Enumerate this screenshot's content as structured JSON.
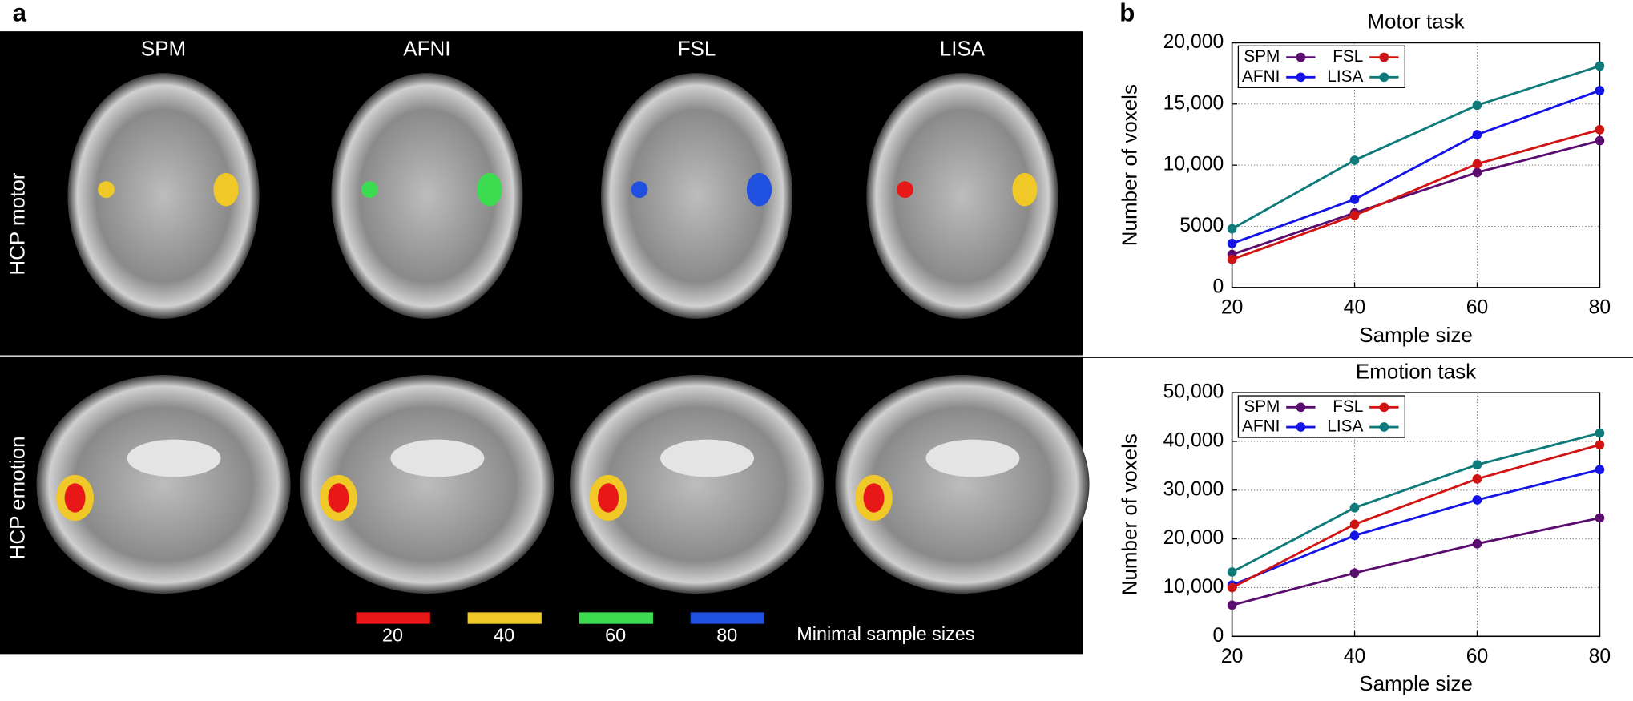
{
  "panel_labels": [
    "a",
    "b"
  ],
  "panel_a": {
    "columns": [
      "SPM",
      "AFNI",
      "FSL",
      "LISA"
    ],
    "rows": [
      "HCP motor",
      "HCP emotion"
    ],
    "scale": {
      "labels": [
        "20",
        "40",
        "60",
        "80"
      ],
      "title": "Minimal sample sizes"
    }
  },
  "chart_data": [
    {
      "type": "line",
      "title": "Motor task",
      "x_label": "Sample size",
      "y_label": "Number of voxels",
      "x": [
        20,
        40,
        60,
        80
      ],
      "xlim": [
        20,
        80
      ],
      "xticks": [
        20,
        40,
        60,
        80
      ],
      "ylim": [
        0,
        20000
      ],
      "yticks": [
        0,
        5000,
        {
          "value": 10000,
          "label": "10,000"
        },
        {
          "value": 15000,
          "label": "15,000"
        },
        {
          "value": 20000,
          "label": "20,000"
        }
      ],
      "grid": true,
      "legend": "upper left",
      "series": [
        {
          "name": "SPM",
          "color": "#5a0d6e",
          "values": [
            2700,
            6100,
            9400,
            12000
          ]
        },
        {
          "name": "AFNI",
          "color": "#1414e6",
          "values": [
            3600,
            7200,
            12500,
            16100
          ]
        },
        {
          "name": "FSL",
          "color": "#d01414",
          "values": [
            2300,
            5900,
            10100,
            12900
          ]
        },
        {
          "name": "LISA",
          "color": "#0e7b7a",
          "values": [
            4800,
            10400,
            14900,
            18100
          ]
        }
      ]
    },
    {
      "type": "line",
      "title": "Emotion task",
      "x_label": "Sample size",
      "y_label": "Number of voxels",
      "x": [
        20,
        40,
        60,
        80
      ],
      "xlim": [
        20,
        80
      ],
      "xticks": [
        20,
        40,
        60,
        80
      ],
      "ylim": [
        0,
        50000
      ],
      "yticks": [
        0,
        {
          "value": 10000,
          "label": "10,000"
        },
        {
          "value": 20000,
          "label": "20,000"
        },
        {
          "value": 30000,
          "label": "30,000"
        },
        {
          "value": 40000,
          "label": "40,000"
        },
        {
          "value": 50000,
          "label": "50,000"
        }
      ],
      "grid": true,
      "legend": "upper left",
      "series": [
        {
          "name": "SPM",
          "color": "#5a0d6e",
          "values": [
            6400,
            13000,
            19000,
            24300
          ]
        },
        {
          "name": "AFNI",
          "color": "#1414e6",
          "values": [
            10500,
            20700,
            28000,
            34200
          ]
        },
        {
          "name": "FSL",
          "color": "#d01414",
          "values": [
            10000,
            23000,
            32300,
            39300
          ]
        },
        {
          "name": "LISA",
          "color": "#0e7b7a",
          "values": [
            13200,
            26400,
            35200,
            41700
          ]
        }
      ]
    }
  ]
}
